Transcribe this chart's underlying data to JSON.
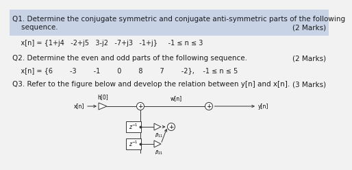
{
  "q1_header_line1": "Q1. Determine the conjugate symmetric and conjugate anti-symmetric parts of the following",
  "q1_header_line2": "    sequence.",
  "q1_marks": "(2 Marks)",
  "q1_seq": "    x[n] = {1+j4   -2+j5   3-j2   -7+j3   -1+j}     -1 ≤ n ≤ 3",
  "q2_header": "Q2. Determine the even and odd parts of the following sequence.",
  "q2_marks": "(2 Marks)",
  "q2_seq": "    x[n] = {6        -3        -1        0        8        7        -2},    -1 ≤ n ≤ 5",
  "q3_header": "Q3. Refer to the figure below and develop the relation between y[n] and x[n].",
  "q3_marks": "(3 Marks)",
  "font_size": 7.5,
  "seq_font_size": 7.0,
  "text_color": "#1a1a1a",
  "header_bg": "#c8d4e6",
  "bg_color": "#f2f2f2"
}
